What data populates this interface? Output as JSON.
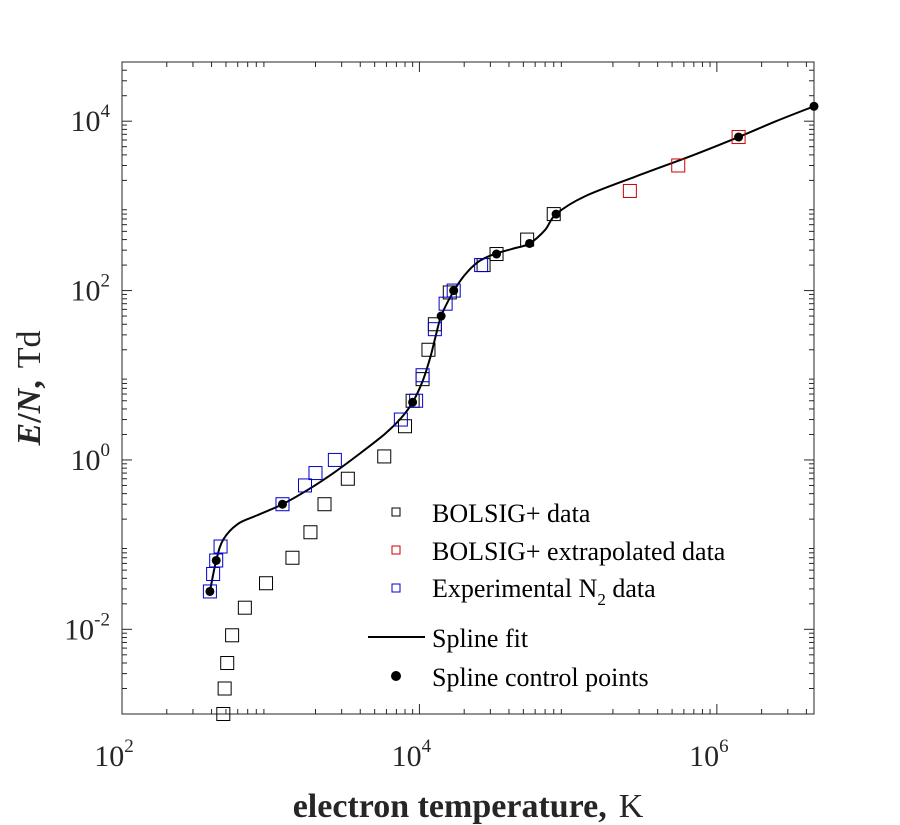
{
  "chart_data": {
    "type": "scatter",
    "xscale": "log",
    "yscale": "log",
    "xlim": [
      100,
      4500000
    ],
    "ylim": [
      0.001,
      50000
    ],
    "xlabel": {
      "main": "electron temperature,",
      "unit": "K"
    },
    "ylabel": {
      "var1": "E",
      "sep": "/",
      "var2": "N",
      "comma": ",",
      "unit": "Td"
    },
    "x_ticks": [
      {
        "value": 100,
        "base": "10",
        "exp": "2"
      },
      {
        "value": 10000,
        "base": "10",
        "exp": "4"
      },
      {
        "value": 1000000,
        "base": "10",
        "exp": "6"
      }
    ],
    "y_ticks": [
      {
        "value": 0.01,
        "base": "10",
        "exp": "-2"
      },
      {
        "value": 1,
        "base": "10",
        "exp": "0"
      },
      {
        "value": 100,
        "base": "10",
        "exp": "2"
      },
      {
        "value": 10000,
        "base": "10",
        "exp": "4"
      }
    ],
    "grid": false,
    "legend_position": "bottom-right",
    "series": [
      {
        "name": "BOLSIG+ data",
        "kind": "markers",
        "marker": "square",
        "color": "#000000",
        "points": [
          [
            480,
            0.001
          ],
          [
            490,
            0.002
          ],
          [
            510,
            0.004
          ],
          [
            550,
            0.0085
          ],
          [
            670,
            0.018
          ],
          [
            930,
            0.035
          ],
          [
            1400,
            0.07
          ],
          [
            1850,
            0.14
          ],
          [
            2300,
            0.3
          ],
          [
            3300,
            0.6
          ],
          [
            5800,
            1.1
          ],
          [
            8000,
            2.5
          ],
          [
            9000,
            5
          ],
          [
            10500,
            9
          ],
          [
            11500,
            20
          ],
          [
            12700,
            40
          ],
          [
            16000,
            95
          ],
          [
            27000,
            200
          ],
          [
            33000,
            270
          ],
          [
            53000,
            400
          ],
          [
            80000,
            800
          ]
        ]
      },
      {
        "name": "BOLSIG+ extrapolated data",
        "kind": "markers",
        "marker": "square",
        "color": "#cc0000",
        "points": [
          [
            260000,
            1500
          ],
          [
            550000,
            3000
          ],
          [
            1400000,
            6500
          ]
        ]
      },
      {
        "name": "Experimental N",
        "name_subscript": "2",
        "name_suffix": " data",
        "kind": "markers",
        "marker": "square",
        "color": "#0000cc",
        "points": [
          [
            390,
            0.028
          ],
          [
            410,
            0.045
          ],
          [
            430,
            0.065
          ],
          [
            460,
            0.095
          ],
          [
            1200,
            0.3
          ],
          [
            1700,
            0.5
          ],
          [
            2000,
            0.7
          ],
          [
            2700,
            1.0
          ],
          [
            7500,
            3
          ],
          [
            9500,
            5
          ],
          [
            10500,
            10
          ],
          [
            12700,
            35
          ],
          [
            15000,
            70
          ],
          [
            17000,
            100
          ],
          [
            26000,
            200
          ]
        ]
      },
      {
        "name": "Spline fit",
        "kind": "line",
        "color": "#000000",
        "points": [
          [
            390,
            0.028
          ],
          [
            430,
            0.065
          ],
          [
            480,
            0.115
          ],
          [
            600,
            0.175
          ],
          [
            800,
            0.22
          ],
          [
            1200,
            0.3
          ],
          [
            1800,
            0.45
          ],
          [
            2700,
            0.72
          ],
          [
            4000,
            1.2
          ],
          [
            5800,
            2.0
          ],
          [
            7500,
            3.1
          ],
          [
            9000,
            4.8
          ],
          [
            10500,
            8.5
          ],
          [
            11800,
            16
          ],
          [
            12800,
            28
          ],
          [
            14000,
            50
          ],
          [
            16500,
            90
          ],
          [
            20000,
            150
          ],
          [
            25000,
            220
          ],
          [
            32000,
            270
          ],
          [
            42000,
            310
          ],
          [
            55000,
            360
          ],
          [
            70000,
            520
          ],
          [
            83000,
            800
          ],
          [
            130000,
            1300
          ],
          [
            300000,
            2300
          ],
          [
            700000,
            4000
          ],
          [
            1400000,
            6500
          ],
          [
            2500000,
            10000
          ],
          [
            4500000,
            15000
          ]
        ]
      },
      {
        "name": "Spline control points",
        "kind": "markers",
        "marker": "dot",
        "color": "#000000",
        "points": [
          [
            390,
            0.028
          ],
          [
            430,
            0.065
          ],
          [
            1200,
            0.3
          ],
          [
            9000,
            4.8
          ],
          [
            14000,
            50
          ],
          [
            17000,
            100
          ],
          [
            33000,
            270
          ],
          [
            55000,
            360
          ],
          [
            83000,
            800
          ],
          [
            1400000,
            6500
          ],
          [
            4500000,
            15000
          ]
        ]
      }
    ]
  }
}
